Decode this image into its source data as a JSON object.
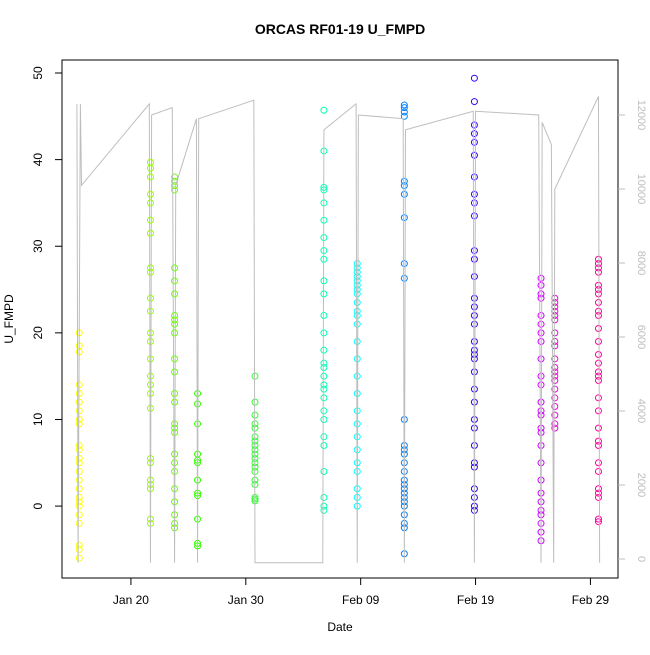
{
  "chart_data": {
    "type": "scatter",
    "title": "ORCAS RF01-19 U_FMPD",
    "x_label": "Date",
    "y_label": "U_FMPD",
    "xlim": [
      14.0,
      62.4
    ],
    "ylim": [
      -8.3,
      51.5
    ],
    "y2lim": [
      -513,
      13486
    ],
    "xticks": [
      {
        "value": 20,
        "label": "Jan 20"
      },
      {
        "value": 30,
        "label": "Jan 30"
      },
      {
        "value": 40,
        "label": "Feb 09"
      },
      {
        "value": 50,
        "label": "Feb 19"
      },
      {
        "value": 60,
        "label": "Feb 29"
      }
    ],
    "yticks": [
      0,
      10,
      20,
      30,
      40,
      50
    ],
    "y2ticks": [
      0,
      2000,
      4000,
      6000,
      8000,
      10000,
      12000
    ],
    "series": [
      {
        "color": "#ffff00",
        "x": 15.5,
        "values": [
          20,
          18.5,
          17.8,
          14,
          13,
          12,
          11,
          10,
          9.5,
          7,
          6.5,
          5.5,
          5,
          4,
          3,
          2,
          1,
          0.5,
          0,
          -1,
          -2,
          -4.5,
          -5,
          -6
        ]
      },
      {
        "color": "#99ff00",
        "x": 21.7,
        "values": [
          39.7,
          39,
          38,
          36,
          35,
          33,
          31.5,
          27.5,
          27,
          24,
          22.5,
          20,
          19,
          17,
          15,
          14,
          13,
          11.3,
          5.5,
          5,
          3,
          2.5,
          2,
          -1.5,
          -2
        ]
      },
      {
        "color": "#66ff00",
        "x": 23.8,
        "values": [
          38,
          37.5,
          37,
          36.5,
          27.5,
          26,
          24.5,
          22,
          21.5,
          21,
          20,
          17,
          15.5,
          13,
          12,
          9.5,
          9,
          8.5,
          6,
          5,
          4,
          2,
          0.5,
          -1,
          -2,
          -2.5
        ]
      },
      {
        "color": "#33ff00",
        "x": 25.8,
        "values": [
          13,
          11.8,
          9.5,
          6,
          5.3,
          5,
          3,
          1.5,
          1.2,
          -1.5,
          -4.3,
          -4.6
        ]
      },
      {
        "color": "#2eff2e",
        "x": 30.8,
        "values": [
          15,
          12,
          10.5,
          9.5,
          9,
          8,
          7.5,
          7,
          6.5,
          6,
          5.5,
          5,
          4.5,
          4,
          3,
          2.5,
          1,
          0.8,
          0.6
        ]
      },
      {
        "color": "#00ffb0",
        "x": 36.8,
        "values": [
          45.7,
          41,
          36.8,
          36.5,
          35,
          33,
          31,
          29.5,
          28.5,
          26,
          24.5,
          22,
          20,
          18,
          16.5,
          16,
          15,
          14,
          13.5,
          12.5,
          11,
          10,
          8,
          7,
          4,
          1,
          0,
          -0.5
        ]
      },
      {
        "color": "#00ffff",
        "x": 39.7,
        "values": [
          28,
          27.5,
          27,
          26.5,
          26,
          25.5,
          25,
          24.5,
          23.5,
          22.5,
          22,
          21,
          19,
          17,
          15,
          13,
          11,
          9.5,
          8,
          6.5,
          5,
          4,
          2,
          1,
          0
        ]
      },
      {
        "color": "#0080ff",
        "x": 43.8,
        "values": [
          46.3,
          46,
          45.5,
          45,
          37.5,
          37,
          36,
          33.3,
          28,
          26.3,
          10,
          7,
          6.5,
          6,
          5,
          4,
          3,
          2.5,
          2,
          1.5,
          1,
          0.5,
          0,
          -1,
          -2,
          -2.5,
          -5.5
        ]
      },
      {
        "color": "#3300ff",
        "x": 49.9,
        "values": [
          49.4,
          46.7,
          44,
          43,
          42,
          40.5,
          38,
          36,
          35,
          33.5,
          29.5,
          28.5,
          26.5,
          24,
          23,
          22,
          21,
          19,
          18,
          17.5,
          17,
          15.5,
          13.5,
          12,
          10,
          9,
          7,
          5,
          4.5,
          2,
          1,
          0,
          -0.5
        ]
      },
      {
        "color": "#cc00ff",
        "x": 55.7,
        "values": [
          26.3,
          25.5,
          24.5,
          24,
          22,
          21,
          20,
          19,
          17,
          15,
          14,
          12,
          11,
          10.5,
          9,
          8.5,
          7,
          5,
          3,
          1.5,
          0.5,
          -0.5,
          -1,
          -2,
          -3,
          -4
        ]
      },
      {
        "color": "#ff00e6",
        "x": 56.9,
        "values": [
          24,
          23.5,
          23,
          22.5,
          22,
          21.5,
          20,
          19,
          18.5,
          17,
          16,
          15.5,
          15,
          14.5,
          13.5,
          12.5,
          11.5,
          10.5,
          9.5,
          9
        ]
      },
      {
        "color": "#ff0099",
        "x": 60.7,
        "values": [
          28.5,
          28,
          27.5,
          27,
          25.5,
          25,
          24.5,
          23.5,
          22.5,
          22,
          20.5,
          19,
          17.5,
          16.5,
          15.5,
          15,
          14.5,
          12.5,
          11,
          9,
          7.5,
          7,
          5,
          4,
          2,
          1.5,
          1,
          -1.5,
          -1.8
        ]
      },
      {
        "color": "#bebebe",
        "axis": "y2",
        "x": [
          15.3,
          15.4,
          15.6,
          15.7,
          21.6,
          21.7,
          21.8,
          23.6,
          23.8,
          23.9,
          25.7,
          25.8,
          25.9,
          30.7,
          30.8,
          36.7,
          36.8,
          39.6,
          39.7,
          39.8,
          43.7,
          43.8,
          43.9,
          49.8,
          49.9,
          50.0,
          55.5,
          55.7,
          55.8,
          56.6,
          56.8,
          56.9,
          60.7,
          60.8
        ],
        "values": [
          12300,
          -100,
          12300,
          10100,
          12300,
          -100,
          12000,
          12200,
          -100,
          10100,
          11900,
          -100,
          11900,
          12400,
          -100,
          -100,
          11600,
          12300,
          -100,
          12000,
          11900,
          -100,
          11600,
          12100,
          -100,
          12100,
          12000,
          -100,
          11800,
          11200,
          -100,
          10000,
          12500,
          -100
        ]
      }
    ]
  }
}
